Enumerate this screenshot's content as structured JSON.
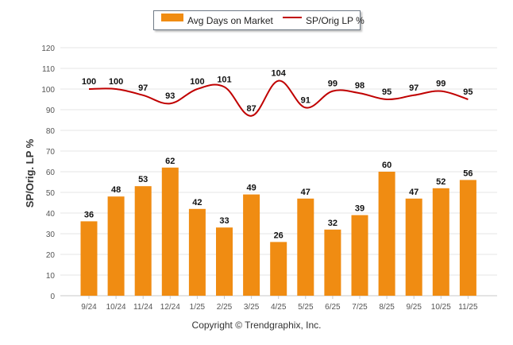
{
  "chart_data": {
    "type": "bar",
    "categories": [
      "9/24",
      "10/24",
      "11/24",
      "12/24",
      "1/25",
      "2/25",
      "3/25",
      "4/25",
      "5/25",
      "6/25",
      "7/25",
      "8/25",
      "9/25",
      "10/25",
      "11/25"
    ],
    "series": [
      {
        "name": "Avg Days on Market",
        "type": "bar",
        "color": "#f08c12",
        "values": [
          36,
          48,
          53,
          62,
          42,
          33,
          49,
          26,
          47,
          32,
          39,
          60,
          47,
          52,
          56
        ]
      },
      {
        "name": "SP/Orig LP %",
        "type": "line",
        "color": "#c00000",
        "values": [
          100,
          100,
          97,
          93,
          100,
          101,
          87,
          104,
          91,
          99,
          98,
          95,
          97,
          99,
          95
        ]
      }
    ],
    "title": "",
    "xlabel": "",
    "ylabel": "SP/Orig. LP %",
    "ylim": [
      0,
      120
    ],
    "yticks": [
      0,
      10,
      20,
      30,
      40,
      50,
      60,
      70,
      80,
      90,
      100,
      110,
      120
    ],
    "grid": true,
    "legend": "top-center"
  },
  "legend": {
    "bar_label": "Avg Days on Market",
    "line_label": "SP/Orig LP %"
  },
  "footer": {
    "copyright": "Copyright © Trendgraphix, Inc."
  }
}
